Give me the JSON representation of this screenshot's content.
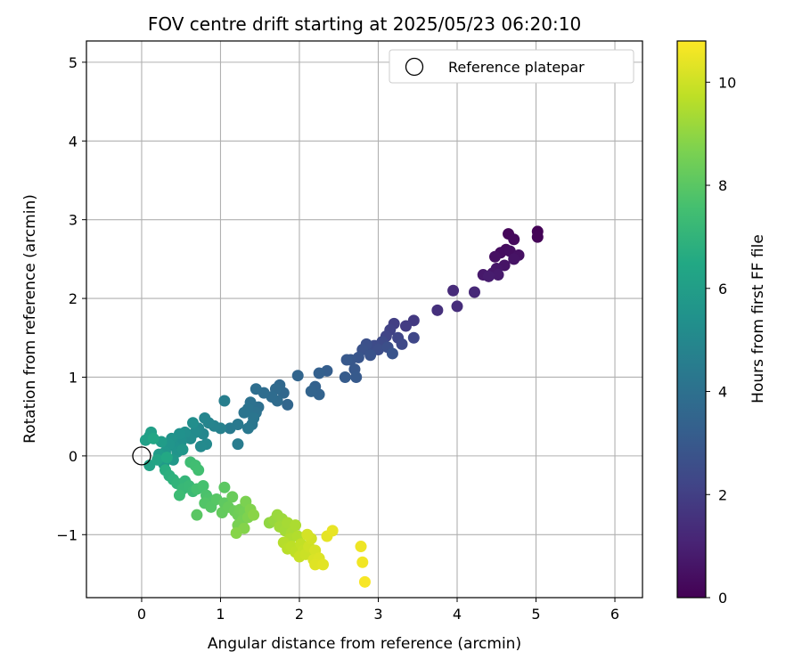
{
  "chart_data": {
    "type": "scatter",
    "title": "FOV centre drift starting at 2025/05/23 06:20:10",
    "xlabel": "Angular distance from reference (arcmin)",
    "ylabel": "Rotation from reference (arcmin)",
    "xlim": [
      -0.7,
      6.35
    ],
    "ylim": [
      -1.8,
      5.27
    ],
    "x_ticks": [
      0,
      1,
      2,
      3,
      4,
      5,
      6
    ],
    "y_ticks": [
      -1,
      0,
      1,
      2,
      3,
      4,
      5
    ],
    "grid": true,
    "legend": {
      "position": "top-right",
      "entries": [
        "Reference platepar"
      ]
    },
    "reference_point": {
      "name": "Reference platepar",
      "x": 0,
      "y": 0
    },
    "colorbar": {
      "label": "Hours from first FF file",
      "min": 0,
      "max": 10.8,
      "ticks": [
        0,
        2,
        4,
        6,
        8,
        10
      ],
      "colormap": "viridis"
    },
    "points": [
      {
        "x": 5.02,
        "y": 2.85,
        "c": 0.05
      },
      {
        "x": 5.02,
        "y": 2.78,
        "c": 0.1
      },
      {
        "x": 4.65,
        "y": 2.82,
        "c": 0.2
      },
      {
        "x": 4.72,
        "y": 2.75,
        "c": 0.25
      },
      {
        "x": 4.62,
        "y": 2.62,
        "c": 0.3
      },
      {
        "x": 4.55,
        "y": 2.58,
        "c": 0.35
      },
      {
        "x": 4.67,
        "y": 2.6,
        "c": 0.4
      },
      {
        "x": 4.48,
        "y": 2.53,
        "c": 0.45
      },
      {
        "x": 4.78,
        "y": 2.55,
        "c": 0.5
      },
      {
        "x": 4.72,
        "y": 2.5,
        "c": 0.55
      },
      {
        "x": 4.6,
        "y": 2.42,
        "c": 0.6
      },
      {
        "x": 4.5,
        "y": 2.38,
        "c": 0.65
      },
      {
        "x": 4.45,
        "y": 2.32,
        "c": 0.7
      },
      {
        "x": 4.33,
        "y": 2.3,
        "c": 0.75
      },
      {
        "x": 4.52,
        "y": 2.3,
        "c": 0.8
      },
      {
        "x": 4.4,
        "y": 2.28,
        "c": 0.85
      },
      {
        "x": 4.22,
        "y": 2.08,
        "c": 1.2
      },
      {
        "x": 3.95,
        "y": 2.1,
        "c": 1.3
      },
      {
        "x": 4.0,
        "y": 1.9,
        "c": 1.4
      },
      {
        "x": 3.75,
        "y": 1.85,
        "c": 1.5
      },
      {
        "x": 3.45,
        "y": 1.72,
        "c": 1.8
      },
      {
        "x": 3.35,
        "y": 1.65,
        "c": 1.9
      },
      {
        "x": 3.2,
        "y": 1.68,
        "c": 2.0
      },
      {
        "x": 3.15,
        "y": 1.6,
        "c": 2.1
      },
      {
        "x": 3.1,
        "y": 1.52,
        "c": 2.2
      },
      {
        "x": 3.25,
        "y": 1.5,
        "c": 2.25
      },
      {
        "x": 3.45,
        "y": 1.5,
        "c": 2.3
      },
      {
        "x": 3.3,
        "y": 1.42,
        "c": 2.35
      },
      {
        "x": 3.05,
        "y": 1.45,
        "c": 2.4
      },
      {
        "x": 2.95,
        "y": 1.4,
        "c": 2.45
      },
      {
        "x": 2.9,
        "y": 1.32,
        "c": 2.5
      },
      {
        "x": 3.0,
        "y": 1.35,
        "c": 2.55
      },
      {
        "x": 3.12,
        "y": 1.38,
        "c": 2.6
      },
      {
        "x": 2.85,
        "y": 1.42,
        "c": 2.65
      },
      {
        "x": 2.8,
        "y": 1.35,
        "c": 2.7
      },
      {
        "x": 2.9,
        "y": 1.28,
        "c": 2.75
      },
      {
        "x": 3.18,
        "y": 1.3,
        "c": 2.8
      },
      {
        "x": 2.75,
        "y": 1.25,
        "c": 2.85
      },
      {
        "x": 2.65,
        "y": 1.22,
        "c": 2.9
      },
      {
        "x": 2.7,
        "y": 1.1,
        "c": 2.95
      },
      {
        "x": 2.6,
        "y": 1.22,
        "c": 3.0
      },
      {
        "x": 2.72,
        "y": 1.0,
        "c": 3.05
      },
      {
        "x": 2.58,
        "y": 1.0,
        "c": 3.1
      },
      {
        "x": 2.35,
        "y": 1.08,
        "c": 3.2
      },
      {
        "x": 2.25,
        "y": 1.05,
        "c": 3.3
      },
      {
        "x": 2.2,
        "y": 0.88,
        "c": 3.35
      },
      {
        "x": 2.25,
        "y": 0.78,
        "c": 3.4
      },
      {
        "x": 2.15,
        "y": 0.82,
        "c": 3.45
      },
      {
        "x": 1.98,
        "y": 1.02,
        "c": 3.5
      },
      {
        "x": 1.85,
        "y": 0.65,
        "c": 3.55
      },
      {
        "x": 1.8,
        "y": 0.8,
        "c": 3.6
      },
      {
        "x": 1.75,
        "y": 0.9,
        "c": 3.65
      },
      {
        "x": 1.7,
        "y": 0.85,
        "c": 3.7
      },
      {
        "x": 1.72,
        "y": 0.7,
        "c": 3.75
      },
      {
        "x": 1.65,
        "y": 0.75,
        "c": 3.8
      },
      {
        "x": 1.55,
        "y": 0.8,
        "c": 3.85
      },
      {
        "x": 1.45,
        "y": 0.85,
        "c": 3.9
      },
      {
        "x": 1.48,
        "y": 0.62,
        "c": 3.95
      },
      {
        "x": 1.38,
        "y": 0.68,
        "c": 4.0
      },
      {
        "x": 1.45,
        "y": 0.55,
        "c": 4.05
      },
      {
        "x": 1.35,
        "y": 0.6,
        "c": 4.1
      },
      {
        "x": 1.3,
        "y": 0.55,
        "c": 4.15
      },
      {
        "x": 1.42,
        "y": 0.48,
        "c": 4.2
      },
      {
        "x": 1.4,
        "y": 0.4,
        "c": 4.25
      },
      {
        "x": 1.35,
        "y": 0.35,
        "c": 4.3
      },
      {
        "x": 1.22,
        "y": 0.4,
        "c": 4.35
      },
      {
        "x": 1.12,
        "y": 0.35,
        "c": 4.4
      },
      {
        "x": 1.22,
        "y": 0.15,
        "c": 4.5
      },
      {
        "x": 1.05,
        "y": 0.7,
        "c": 4.6
      },
      {
        "x": 1.0,
        "y": 0.35,
        "c": 4.7
      },
      {
        "x": 0.92,
        "y": 0.38,
        "c": 4.8
      },
      {
        "x": 0.85,
        "y": 0.42,
        "c": 4.85
      },
      {
        "x": 0.8,
        "y": 0.48,
        "c": 4.9
      },
      {
        "x": 0.78,
        "y": 0.28,
        "c": 4.95
      },
      {
        "x": 0.72,
        "y": 0.35,
        "c": 5.0
      },
      {
        "x": 0.82,
        "y": 0.15,
        "c": 5.05
      },
      {
        "x": 0.75,
        "y": 0.12,
        "c": 5.1
      },
      {
        "x": 0.68,
        "y": 0.3,
        "c": 5.15
      },
      {
        "x": 0.62,
        "y": 0.22,
        "c": 5.2
      },
      {
        "x": 0.65,
        "y": 0.42,
        "c": 5.25
      },
      {
        "x": 0.55,
        "y": 0.3,
        "c": 5.3
      },
      {
        "x": 0.5,
        "y": 0.18,
        "c": 5.35
      },
      {
        "x": 0.48,
        "y": 0.28,
        "c": 5.4
      },
      {
        "x": 0.42,
        "y": 0.12,
        "c": 5.45
      },
      {
        "x": 0.38,
        "y": 0.22,
        "c": 5.5
      },
      {
        "x": 0.45,
        "y": 0.05,
        "c": 5.55
      },
      {
        "x": 0.35,
        "y": 0.15,
        "c": 5.6
      },
      {
        "x": 0.52,
        "y": 0.08,
        "c": 5.65
      },
      {
        "x": 0.3,
        "y": 0.05,
        "c": 5.7
      },
      {
        "x": 0.4,
        "y": -0.05,
        "c": 5.75
      },
      {
        "x": 0.28,
        "y": -0.1,
        "c": 5.8
      },
      {
        "x": 0.22,
        "y": 0.02,
        "c": 5.85
      },
      {
        "x": 0.25,
        "y": 0.18,
        "c": 5.9
      },
      {
        "x": 0.1,
        "y": 0.25,
        "c": 6.0
      },
      {
        "x": 0.12,
        "y": 0.3,
        "c": 6.05
      },
      {
        "x": 0.05,
        "y": 0.2,
        "c": 6.1
      },
      {
        "x": 0.1,
        "y": -0.12,
        "c": 6.2
      },
      {
        "x": 0.2,
        "y": -0.05,
        "c": 6.3
      },
      {
        "x": 0.15,
        "y": 0.22,
        "c": 6.4
      },
      {
        "x": 0.32,
        "y": -0.02,
        "c": 6.5
      },
      {
        "x": 0.3,
        "y": -0.18,
        "c": 6.7
      },
      {
        "x": 0.35,
        "y": -0.25,
        "c": 6.8
      },
      {
        "x": 0.4,
        "y": -0.3,
        "c": 6.9
      },
      {
        "x": 0.45,
        "y": -0.35,
        "c": 7.0
      },
      {
        "x": 0.55,
        "y": -0.32,
        "c": 7.1
      },
      {
        "x": 0.52,
        "y": -0.42,
        "c": 7.2
      },
      {
        "x": 0.6,
        "y": -0.38,
        "c": 7.25
      },
      {
        "x": 0.65,
        "y": -0.45,
        "c": 7.3
      },
      {
        "x": 0.48,
        "y": -0.5,
        "c": 7.35
      },
      {
        "x": 0.62,
        "y": -0.08,
        "c": 7.4
      },
      {
        "x": 0.68,
        "y": -0.12,
        "c": 7.45
      },
      {
        "x": 0.72,
        "y": -0.18,
        "c": 7.5
      },
      {
        "x": 0.7,
        "y": -0.42,
        "c": 7.55
      },
      {
        "x": 0.78,
        "y": -0.38,
        "c": 7.6
      },
      {
        "x": 0.82,
        "y": -0.5,
        "c": 7.7
      },
      {
        "x": 0.85,
        "y": -0.55,
        "c": 7.75
      },
      {
        "x": 0.9,
        "y": -0.58,
        "c": 7.8
      },
      {
        "x": 0.8,
        "y": -0.6,
        "c": 7.85
      },
      {
        "x": 0.88,
        "y": -0.65,
        "c": 7.9
      },
      {
        "x": 0.95,
        "y": -0.55,
        "c": 7.95
      },
      {
        "x": 0.7,
        "y": -0.75,
        "c": 8.0
      },
      {
        "x": 1.05,
        "y": -0.4,
        "c": 8.05
      },
      {
        "x": 1.05,
        "y": -0.6,
        "c": 8.1
      },
      {
        "x": 1.02,
        "y": -0.72,
        "c": 8.2
      },
      {
        "x": 1.1,
        "y": -0.65,
        "c": 8.25
      },
      {
        "x": 1.15,
        "y": -0.52,
        "c": 8.3
      },
      {
        "x": 1.18,
        "y": -0.7,
        "c": 8.35
      },
      {
        "x": 1.22,
        "y": -0.75,
        "c": 8.4
      },
      {
        "x": 1.25,
        "y": -0.68,
        "c": 8.45
      },
      {
        "x": 1.3,
        "y": -0.72,
        "c": 8.5
      },
      {
        "x": 1.28,
        "y": -0.82,
        "c": 8.55
      },
      {
        "x": 1.22,
        "y": -0.88,
        "c": 8.6
      },
      {
        "x": 1.32,
        "y": -0.58,
        "c": 8.65
      },
      {
        "x": 1.35,
        "y": -0.78,
        "c": 8.7
      },
      {
        "x": 1.38,
        "y": -0.68,
        "c": 8.75
      },
      {
        "x": 1.3,
        "y": -0.92,
        "c": 8.8
      },
      {
        "x": 1.2,
        "y": -0.98,
        "c": 8.85
      },
      {
        "x": 1.42,
        "y": -0.75,
        "c": 8.9
      },
      {
        "x": 1.62,
        "y": -0.85,
        "c": 9.0
      },
      {
        "x": 1.68,
        "y": -0.82,
        "c": 9.1
      },
      {
        "x": 1.72,
        "y": -0.75,
        "c": 9.15
      },
      {
        "x": 1.78,
        "y": -0.8,
        "c": 9.2
      },
      {
        "x": 1.75,
        "y": -0.9,
        "c": 9.25
      },
      {
        "x": 1.82,
        "y": -0.95,
        "c": 9.3
      },
      {
        "x": 1.85,
        "y": -0.85,
        "c": 9.35
      },
      {
        "x": 1.9,
        "y": -0.98,
        "c": 9.4
      },
      {
        "x": 1.95,
        "y": -0.88,
        "c": 9.45
      },
      {
        "x": 1.88,
        "y": -1.05,
        "c": 9.5
      },
      {
        "x": 1.98,
        "y": -1.02,
        "c": 9.55
      },
      {
        "x": 1.8,
        "y": -1.1,
        "c": 9.6
      },
      {
        "x": 1.85,
        "y": -1.18,
        "c": 9.65
      },
      {
        "x": 1.9,
        "y": -1.15,
        "c": 9.7
      },
      {
        "x": 1.95,
        "y": -1.22,
        "c": 9.75
      },
      {
        "x": 2.02,
        "y": -1.12,
        "c": 9.8
      },
      {
        "x": 2.05,
        "y": -1.2,
        "c": 9.85
      },
      {
        "x": 2.0,
        "y": -1.28,
        "c": 9.9
      },
      {
        "x": 2.08,
        "y": -1.25,
        "c": 9.95
      },
      {
        "x": 2.12,
        "y": -1.15,
        "c": 10.0
      },
      {
        "x": 2.15,
        "y": -1.05,
        "c": 10.05
      },
      {
        "x": 2.1,
        "y": -1.0,
        "c": 10.1
      },
      {
        "x": 2.2,
        "y": -1.2,
        "c": 10.15
      },
      {
        "x": 2.18,
        "y": -1.32,
        "c": 10.2
      },
      {
        "x": 2.25,
        "y": -1.3,
        "c": 10.25
      },
      {
        "x": 2.2,
        "y": -1.38,
        "c": 10.3
      },
      {
        "x": 2.3,
        "y": -1.38,
        "c": 10.35
      },
      {
        "x": 2.35,
        "y": -1.02,
        "c": 10.4
      },
      {
        "x": 2.42,
        "y": -0.95,
        "c": 10.45
      },
      {
        "x": 2.78,
        "y": -1.15,
        "c": 10.55
      },
      {
        "x": 2.8,
        "y": -1.35,
        "c": 10.6
      },
      {
        "x": 2.83,
        "y": -1.6,
        "c": 10.7
      }
    ]
  }
}
